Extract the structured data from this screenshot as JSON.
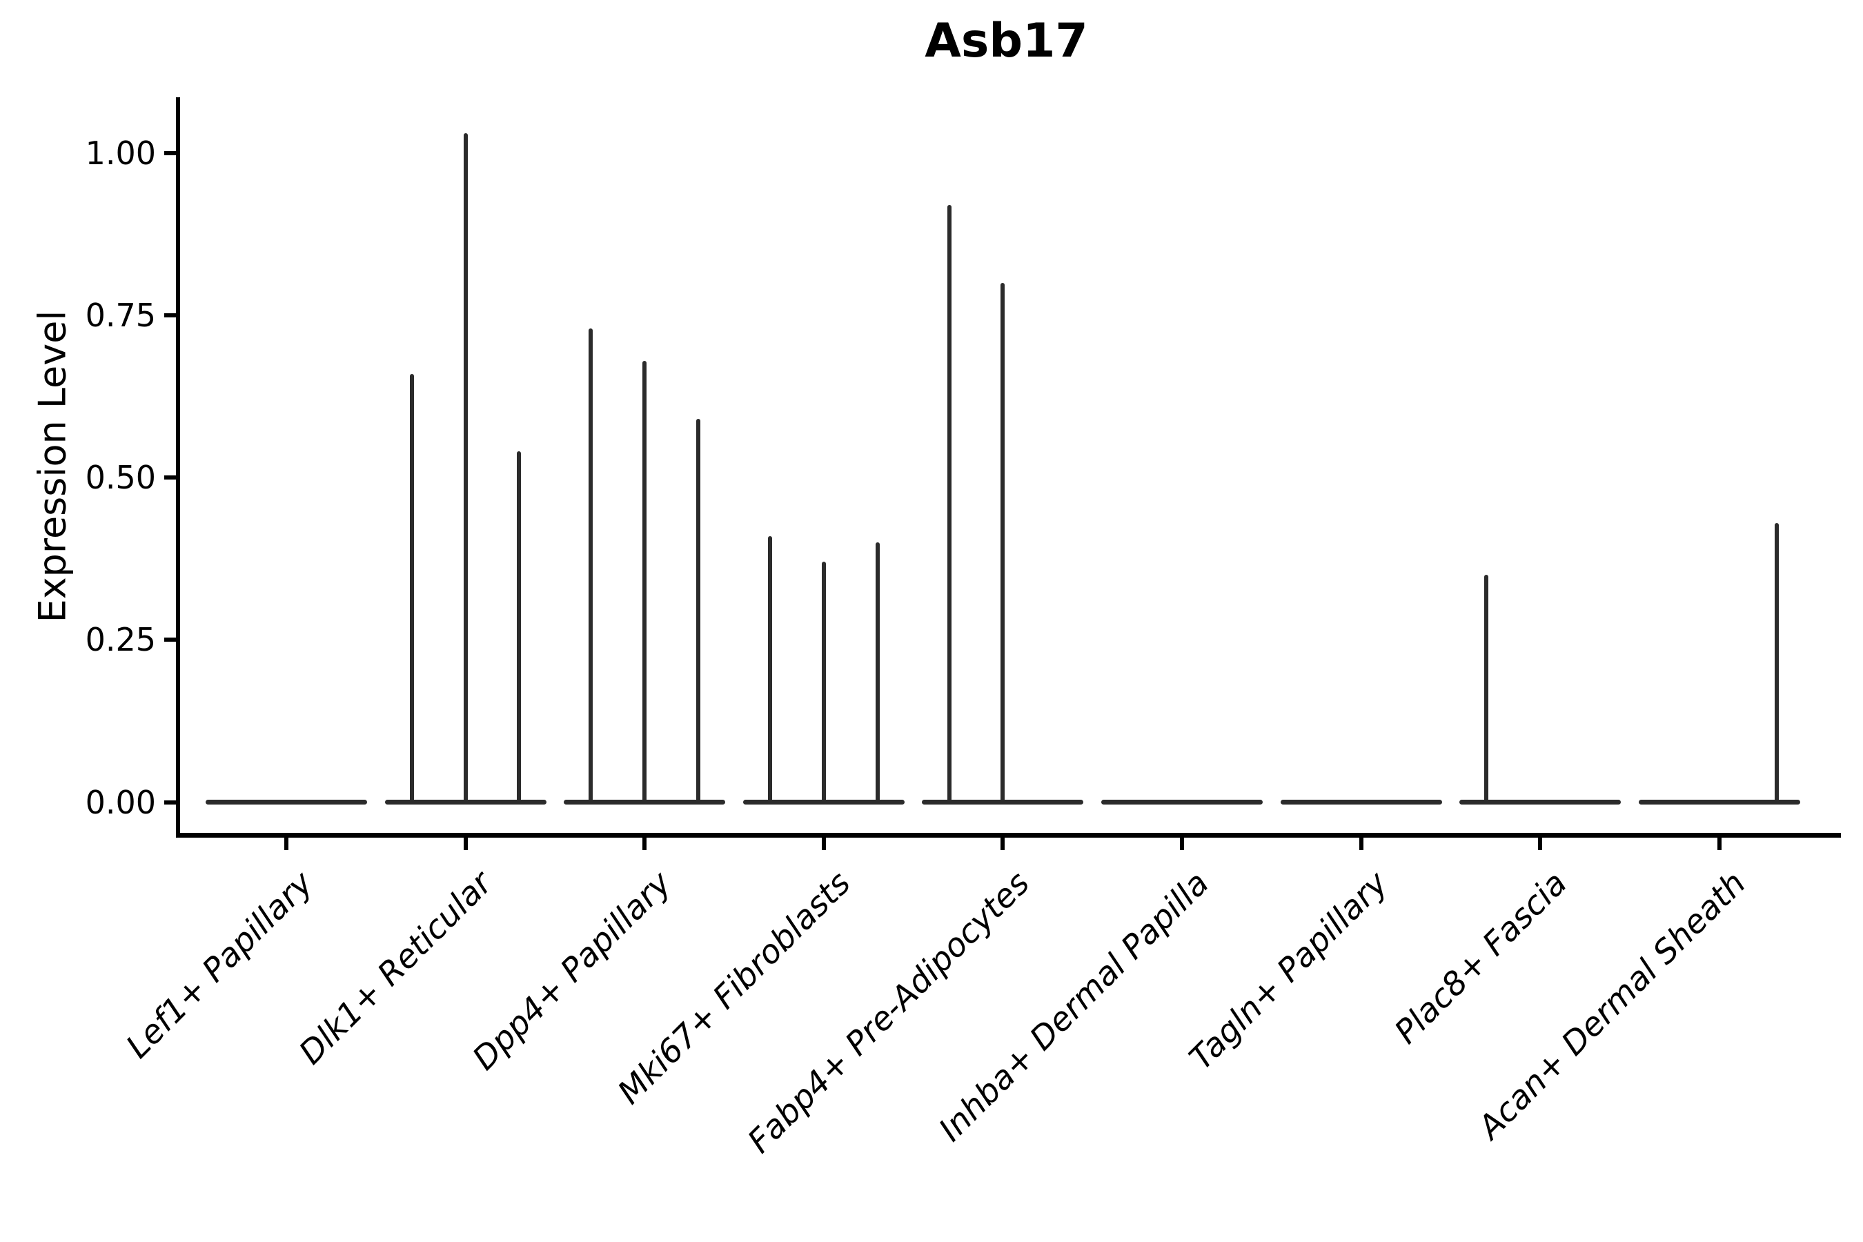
{
  "title": "Asb17",
  "yaxis_label": "Expression Level",
  "chart_data": {
    "type": "violin",
    "title": "Asb17",
    "ylabel": "Expression Level",
    "ylim": [
      0,
      1.09
    ],
    "yticks": [
      0.0,
      0.25,
      0.5,
      0.75,
      1.0
    ],
    "ytick_labels": [
      "0.00",
      "0.25",
      "0.50",
      "0.75",
      "1.00"
    ],
    "grid": "off",
    "legend": "none",
    "categories": [
      "Lef1+ Papillary",
      "Dlk1+ Reticular",
      "Dpp4+ Papillary",
      "Mki67+ Fibroblasts",
      "Fabp4+ Pre-Adipocytes",
      "Inhba+ Dermal Papilla",
      "Tagln+ Papillary",
      "Plac8+ Fascia",
      "Acan+ Dermal Sheath"
    ],
    "groups": [
      {
        "category": "Lef1+ Papillary",
        "baseline_value": 0,
        "spikes": []
      },
      {
        "category": "Dlk1+ Reticular",
        "baseline_value": 0,
        "spikes": [
          {
            "pos": -0.3,
            "value": 0.66
          },
          {
            "pos": 0.0,
            "value": 1.03
          },
          {
            "pos": 0.3,
            "value": 0.54
          }
        ]
      },
      {
        "category": "Dpp4+ Papillary",
        "baseline_value": 0,
        "spikes": [
          {
            "pos": -0.3,
            "value": 0.73
          },
          {
            "pos": 0.0,
            "value": 0.68
          },
          {
            "pos": 0.3,
            "value": 0.59
          }
        ]
      },
      {
        "category": "Mki67+ Fibroblasts",
        "baseline_value": 0,
        "spikes": [
          {
            "pos": -0.3,
            "value": 0.41
          },
          {
            "pos": 0.0,
            "value": 0.37
          },
          {
            "pos": 0.3,
            "value": 0.4
          }
        ]
      },
      {
        "category": "Fabp4+ Pre-Adipocytes",
        "baseline_value": 0,
        "spikes": [
          {
            "pos": -0.3,
            "value": 0.92
          },
          {
            "pos": 0.0,
            "value": 0.8
          }
        ]
      },
      {
        "category": "Inhba+ Dermal Papilla",
        "baseline_value": 0,
        "spikes": []
      },
      {
        "category": "Tagln+ Papillary",
        "baseline_value": 0,
        "spikes": []
      },
      {
        "category": "Plac8+ Fascia",
        "baseline_value": 0,
        "spikes": [
          {
            "pos": -0.3,
            "value": 0.35
          }
        ]
      },
      {
        "category": "Acan+ Dermal Sheath",
        "baseline_value": 0,
        "spikes": [
          {
            "pos": 0.32,
            "value": 0.43
          }
        ]
      }
    ]
  },
  "colors": {
    "violin_line": "#2b2b2b",
    "axis": "#000000",
    "text": "#000000",
    "background": "#ffffff"
  }
}
